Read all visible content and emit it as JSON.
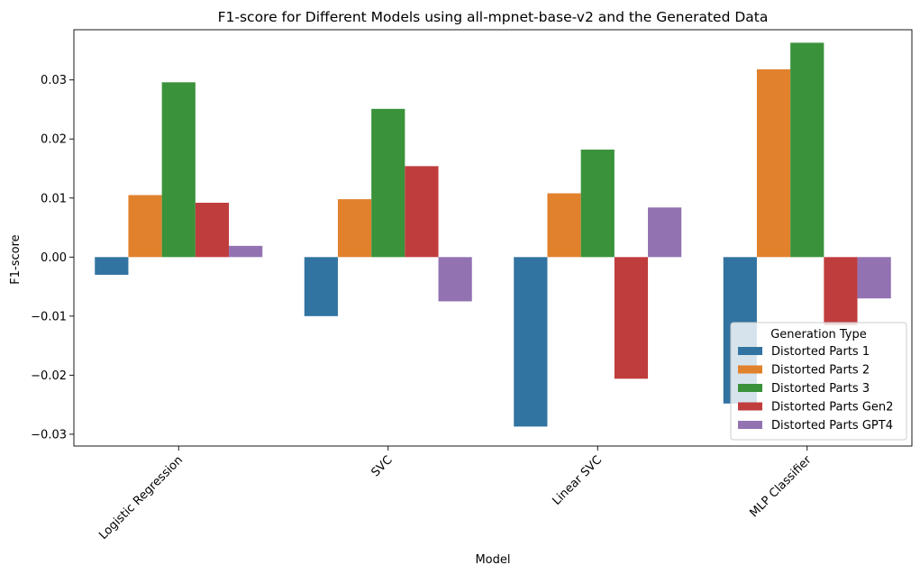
{
  "chart_data": {
    "type": "bar",
    "title": "F1-score for Different Models using all-mpnet-base-v2 and the Generated Data",
    "xlabel": "Model",
    "ylabel": "F1-score",
    "categories": [
      "Logistic Regression",
      "SVC",
      "Linear SVC",
      "MLP Classifier"
    ],
    "ylim": [
      -0.032,
      0.0385
    ],
    "yticks": [
      -0.03,
      -0.02,
      -0.01,
      0.0,
      0.01,
      0.02,
      0.03
    ],
    "ytick_labels": [
      "−0.03",
      "−0.02",
      "−0.01",
      "0.00",
      "0.01",
      "0.02",
      "0.03"
    ],
    "grid": false,
    "legend": {
      "title": "Generation Type",
      "placement": "lower right"
    },
    "series": [
      {
        "name": "Distorted Parts 1",
        "color": "#3274a1",
        "values": [
          -0.003,
          -0.01,
          -0.0287,
          -0.0248
        ]
      },
      {
        "name": "Distorted Parts 2",
        "color": "#e1812c",
        "values": [
          0.0105,
          0.0098,
          0.0108,
          0.0318
        ]
      },
      {
        "name": "Distorted Parts 3",
        "color": "#3a923a",
        "values": [
          0.0296,
          0.0251,
          0.0182,
          0.0363
        ]
      },
      {
        "name": "Distorted Parts Gen2",
        "color": "#c03d3e",
        "values": [
          0.0092,
          0.0154,
          -0.0206,
          -0.0115
        ]
      },
      {
        "name": "Distorted Parts GPT4",
        "color": "#9372b2",
        "values": [
          0.0019,
          -0.0075,
          0.0084,
          -0.007
        ]
      }
    ]
  }
}
